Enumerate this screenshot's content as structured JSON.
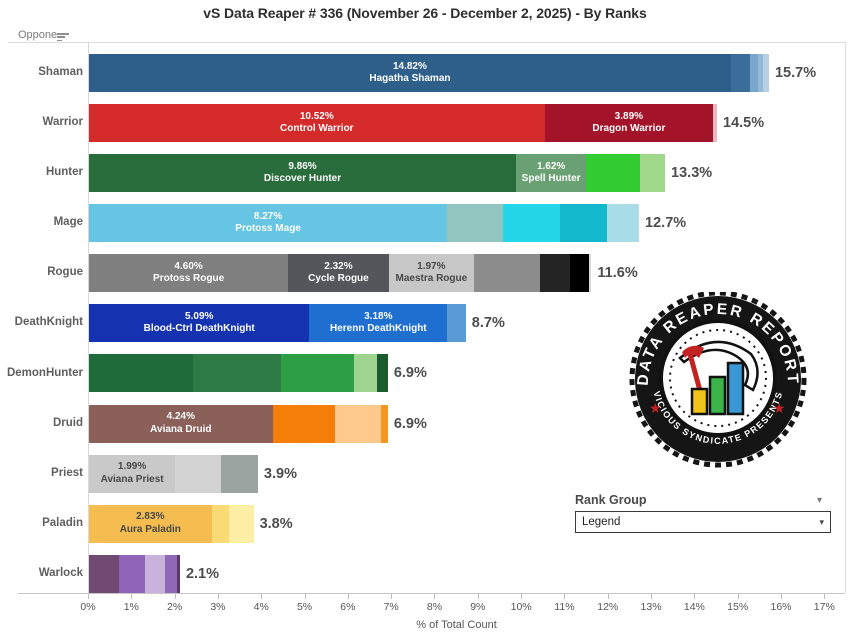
{
  "title": "vS Data Reaper # 336 (November 26 - December 2, 2025) - By Ranks",
  "column_header": {
    "label": "Oppone.."
  },
  "rank_group": {
    "label": "Rank Group",
    "selected": "Legend"
  },
  "logo": {
    "top_text": "DATA REAPER REPORT",
    "bottom_text": "VICIOUS SYNDICATE PRESENTS"
  },
  "chart_data": {
    "type": "bar",
    "orientation": "horizontal-stacked",
    "title": "vS Data Reaper # 336 (November 26 - December 2, 2025) - By Ranks",
    "xlabel": "% of Total Count",
    "x_ticks": [
      "0%",
      "1%",
      "2%",
      "3%",
      "4%",
      "5%",
      "6%",
      "7%",
      "8%",
      "9%",
      "10%",
      "11%",
      "12%",
      "13%",
      "14%",
      "15%",
      "16%",
      "17%"
    ],
    "x_axis_range": [
      0,
      17
    ],
    "grid": false,
    "legend_position": "none",
    "rows": [
      {
        "class": "Shaman",
        "total": "15.7%",
        "segments": [
          {
            "pct": 14.82,
            "color": "#2e5f8a",
            "label": "14.82%",
            "name": "Hagatha Shaman"
          },
          {
            "pct": 0.45,
            "color": "#3a6d99"
          },
          {
            "pct": 0.18,
            "color": "#7aa6cc"
          },
          {
            "pct": 0.12,
            "color": "#94b8d8"
          },
          {
            "pct": 0.13,
            "color": "#b8d0e4"
          }
        ]
      },
      {
        "class": "Warrior",
        "total": "14.5%",
        "segments": [
          {
            "pct": 10.52,
            "color": "#d42a2a",
            "label": "10.52%",
            "name": "Control Warrior"
          },
          {
            "pct": 3.89,
            "color": "#a31329",
            "label": "3.89%",
            "name": "Dragon Warrior"
          },
          {
            "pct": 0.09,
            "color": "#e9b7c4"
          }
        ]
      },
      {
        "class": "Hunter",
        "total": "13.3%",
        "segments": [
          {
            "pct": 9.86,
            "color": "#2a6d3c",
            "label": "9.86%",
            "name": "Discover Hunter"
          },
          {
            "pct": 1.62,
            "color": "#6aa173",
            "label": "1.62%",
            "name": "Spell Hunter"
          },
          {
            "pct": 1.25,
            "color": "#33cc33"
          },
          {
            "pct": 0.57,
            "color": "#9fd989"
          }
        ]
      },
      {
        "class": "Mage",
        "total": "12.7%",
        "segments": [
          {
            "pct": 8.27,
            "color": "#66c5e3",
            "label": "8.27%",
            "name": "Protoss Mage"
          },
          {
            "pct": 1.3,
            "color": "#92c5c0"
          },
          {
            "pct": 1.3,
            "color": "#25d6e8"
          },
          {
            "pct": 1.1,
            "color": "#14b8cc"
          },
          {
            "pct": 0.73,
            "color": "#a8dde8"
          }
        ]
      },
      {
        "class": "Rogue",
        "total": "11.6%",
        "segments": [
          {
            "pct": 4.6,
            "color": "#7f7f7f",
            "label": "4.60%",
            "name": "Protoss Rogue"
          },
          {
            "pct": 2.32,
            "color": "#55565c",
            "label": "2.32%",
            "name": "Cycle Rogue"
          },
          {
            "pct": 1.97,
            "color": "#c7c7c7",
            "label": "1.97%",
            "name": "Maestra Rogue",
            "dark": true
          },
          {
            "pct": 1.52,
            "color": "#8c8c8c"
          },
          {
            "pct": 0.7,
            "color": "#242424"
          },
          {
            "pct": 0.44,
            "color": "#000000"
          },
          {
            "pct": 0.05,
            "color": "#d9d9d9"
          }
        ]
      },
      {
        "class": "DeathKnight",
        "total": "8.7%",
        "segments": [
          {
            "pct": 5.09,
            "color": "#1532b0",
            "label": "5.09%",
            "name": "Blood-Ctrl DeathKnight"
          },
          {
            "pct": 3.18,
            "color": "#1e6fd0",
            "label": "3.18%",
            "name": "Herenn DeathKnight"
          },
          {
            "pct": 0.43,
            "color": "#5b9bd5"
          }
        ]
      },
      {
        "class": "DemonHunter",
        "total": "6.9%",
        "segments": [
          {
            "pct": 2.4,
            "color": "#206b3a"
          },
          {
            "pct": 2.03,
            "color": "#2d7a45"
          },
          {
            "pct": 1.69,
            "color": "#2e9e44"
          },
          {
            "pct": 0.53,
            "color": "#9fd48f"
          },
          {
            "pct": 0.25,
            "color": "#1a5c30"
          }
        ]
      },
      {
        "class": "Druid",
        "total": "6.9%",
        "segments": [
          {
            "pct": 4.24,
            "color": "#8a6058",
            "label": "4.24%",
            "name": "Aviana Druid"
          },
          {
            "pct": 1.45,
            "color": "#f57e0a"
          },
          {
            "pct": 1.06,
            "color": "#fdc98c"
          },
          {
            "pct": 0.15,
            "color": "#f59820"
          }
        ]
      },
      {
        "class": "Priest",
        "total": "3.9%",
        "segments": [
          {
            "pct": 1.99,
            "color": "#c9c9c9",
            "label": "1.99%",
            "name": "Aviana Priest",
            "dark": true
          },
          {
            "pct": 1.06,
            "color": "#d2d2d2"
          },
          {
            "pct": 0.85,
            "color": "#9aa5a2"
          }
        ]
      },
      {
        "class": "Paladin",
        "total": "3.8%",
        "segments": [
          {
            "pct": 2.83,
            "color": "#f5bd4f",
            "label": "2.83%",
            "name": "Aura Paladin",
            "dark": true
          },
          {
            "pct": 0.4,
            "color": "#f9da75"
          },
          {
            "pct": 0.57,
            "color": "#fdeea6"
          }
        ]
      },
      {
        "class": "Warlock",
        "total": "2.1%",
        "segments": [
          {
            "pct": 0.7,
            "color": "#714a72"
          },
          {
            "pct": 0.6,
            "color": "#8e63b8"
          },
          {
            "pct": 0.46,
            "color": "#c9b3dc"
          },
          {
            "pct": 0.28,
            "color": "#9068b8"
          },
          {
            "pct": 0.06,
            "color": "#5c3a66"
          }
        ]
      }
    ]
  }
}
